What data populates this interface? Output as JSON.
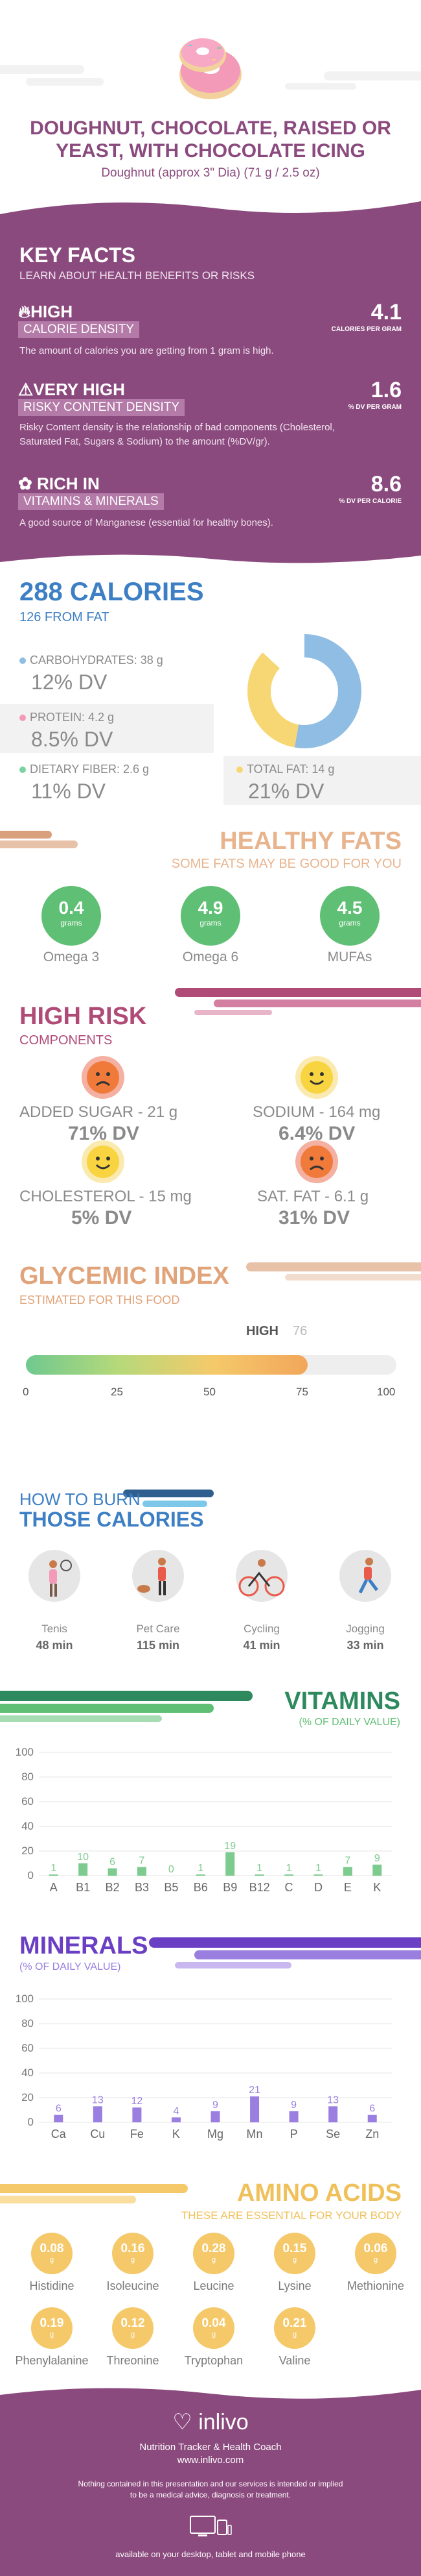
{
  "header": {
    "title_line1": "DOUGHNUT, CHOCOLATE, RAISED OR",
    "title_line2": "YEAST, WITH CHOCOLATE ICING",
    "subtitle": "Doughnut (approx 3\" Dia) (71 g / 2.5 oz)"
  },
  "key_facts": {
    "heading": "KEY FACTS",
    "subheading": "LEARN ABOUT HEALTH BENEFITS OR RISKS",
    "items": [
      {
        "level": "HIGH",
        "tag": "CALORIE DENSITY",
        "value": "4.1",
        "unit": "CALORIES PER GRAM",
        "desc": "The amount of calories you are getting from 1 gram is high."
      },
      {
        "level": "VERY HIGH",
        "tag": "RISKY CONTENT DENSITY",
        "value": "1.6",
        "unit": "% DV PER GRAM",
        "desc": "Risky Content density is the relationship of bad components (Cholesterol, Saturated Fat, Sugars & Sodium) to the amount (%DV/gr)."
      },
      {
        "level": "RICH  IN",
        "tag": "VITAMINS & MINERALS",
        "value": "8.6",
        "unit": "% DV PER CALORIE",
        "desc": "A good source of Manganese (essential for healthy bones)."
      }
    ]
  },
  "calories": {
    "title": "288 CALORIES",
    "from_fat": "126 FROM FAT",
    "carbs_label": "CARBOHYDRATES: 38 g",
    "carbs_dv": "12% DV",
    "protein_label": "PROTEIN: 4.2 g",
    "protein_dv": "8.5% DV",
    "fiber_label": "DIETARY FIBER: 2.6 g",
    "fiber_dv": "11% DV",
    "fat_label": "TOTAL FAT: 14 g",
    "fat_dv": "21% DV",
    "colors": {
      "carbs": "#8fbde3",
      "protein": "#f29ab8",
      "fiber": "#7bd3a4",
      "fat": "#f7d774"
    }
  },
  "healthy_fats": {
    "title": "HEALTHY FATS",
    "subtitle": "SOME FATS MAY BE GOOD FOR YOU",
    "items": [
      {
        "value": "0.4",
        "unit": "grams",
        "name": "Omega 3"
      },
      {
        "value": "4.9",
        "unit": "grams",
        "name": "Omega 6"
      },
      {
        "value": "4.5",
        "unit": "grams",
        "name": "MUFAs"
      }
    ]
  },
  "high_risk": {
    "title": "HIGH RISK",
    "subtitle": "COMPONENTS",
    "items": [
      {
        "name": "ADDED SUGAR - 21 g",
        "dv": "71% DV",
        "face": "sad"
      },
      {
        "name": "SODIUM - 164 mg",
        "dv": "6.4% DV",
        "face": "happy"
      },
      {
        "name": "CHOLESTEROL - 15 mg",
        "dv": "5% DV",
        "face": "happy"
      },
      {
        "name": "SAT. FAT - 6.1 g",
        "dv": "31% DV",
        "face": "sad"
      }
    ]
  },
  "glycemic": {
    "title": "GLYCEMIC INDEX",
    "subtitle": "ESTIMATED FOR THIS FOOD",
    "level": "HIGH",
    "value": 76,
    "value_label": "76",
    "ticks": [
      "0",
      "25",
      "50",
      "75",
      "100"
    ]
  },
  "burn": {
    "title1": "HOW TO BURN",
    "title2": "THOSE CALORIES",
    "items": [
      {
        "name": "Tenis",
        "minutes": "48 min",
        "icon": "tennis-icon"
      },
      {
        "name": "Pet Care",
        "minutes": "115 min",
        "icon": "pet-care-icon"
      },
      {
        "name": "Cycling",
        "minutes": "41 min",
        "icon": "cycling-icon"
      },
      {
        "name": "Jogging",
        "minutes": "33 min",
        "icon": "jogging-icon"
      }
    ]
  },
  "vitamins": {
    "title": "VITAMINS",
    "subtitle": "(% OF DAILY VALUE)"
  },
  "minerals": {
    "title": "MINERALS",
    "subtitle": "(% OF DAILY VALUE)"
  },
  "chart_data": [
    {
      "type": "bar",
      "title": "VITAMINS",
      "categories": [
        "A",
        "B1",
        "B2",
        "B3",
        "B5",
        "B6",
        "B9",
        "B12",
        "C",
        "D",
        "E",
        "K"
      ],
      "values": [
        1,
        10,
        6,
        7,
        0,
        1,
        19,
        1,
        1,
        1,
        7,
        9
      ],
      "ylim": [
        0,
        100
      ],
      "yticks": [
        0,
        20,
        40,
        60,
        80,
        100
      ],
      "color": "#7ecb8f"
    },
    {
      "type": "bar",
      "title": "MINERALS",
      "categories": [
        "Ca",
        "Cu",
        "Fe",
        "K",
        "Mg",
        "Mn",
        "P",
        "Se",
        "Zn"
      ],
      "values": [
        6,
        13,
        12,
        4,
        9,
        21,
        9,
        13,
        6
      ],
      "ylim": [
        0,
        100
      ],
      "yticks": [
        0,
        20,
        40,
        60,
        80,
        100
      ],
      "color": "#9a7fe0"
    }
  ],
  "amino": {
    "title": "AMINO ACIDS",
    "subtitle": "THESE ARE ESSENTIAL FOR YOUR BODY",
    "unit": "g",
    "items": [
      {
        "value": "0.08",
        "name": "Histidine"
      },
      {
        "value": "0.16",
        "name": "Isoleucine"
      },
      {
        "value": "0.28",
        "name": "Leucine"
      },
      {
        "value": "0.15",
        "name": "Lysine"
      },
      {
        "value": "0.06",
        "name": "Methionine"
      },
      {
        "value": "0.19",
        "name": "Phenylalanine"
      },
      {
        "value": "0.12",
        "name": "Threonine"
      },
      {
        "value": "0.04",
        "name": "Tryptophan"
      },
      {
        "value": "0.21",
        "name": "Valine"
      }
    ]
  },
  "footer": {
    "brand": "inlivo",
    "tagline": "Nutrition Tracker & Health Coach",
    "url": "www.inlivo.com",
    "disclaimer1": "Nothing contained in this presentation and our services is intended or implied",
    "disclaimer2": "to be a medical advice, diagnosis or treatment.",
    "available": "available on your desktop, tablet and mobile phone"
  }
}
